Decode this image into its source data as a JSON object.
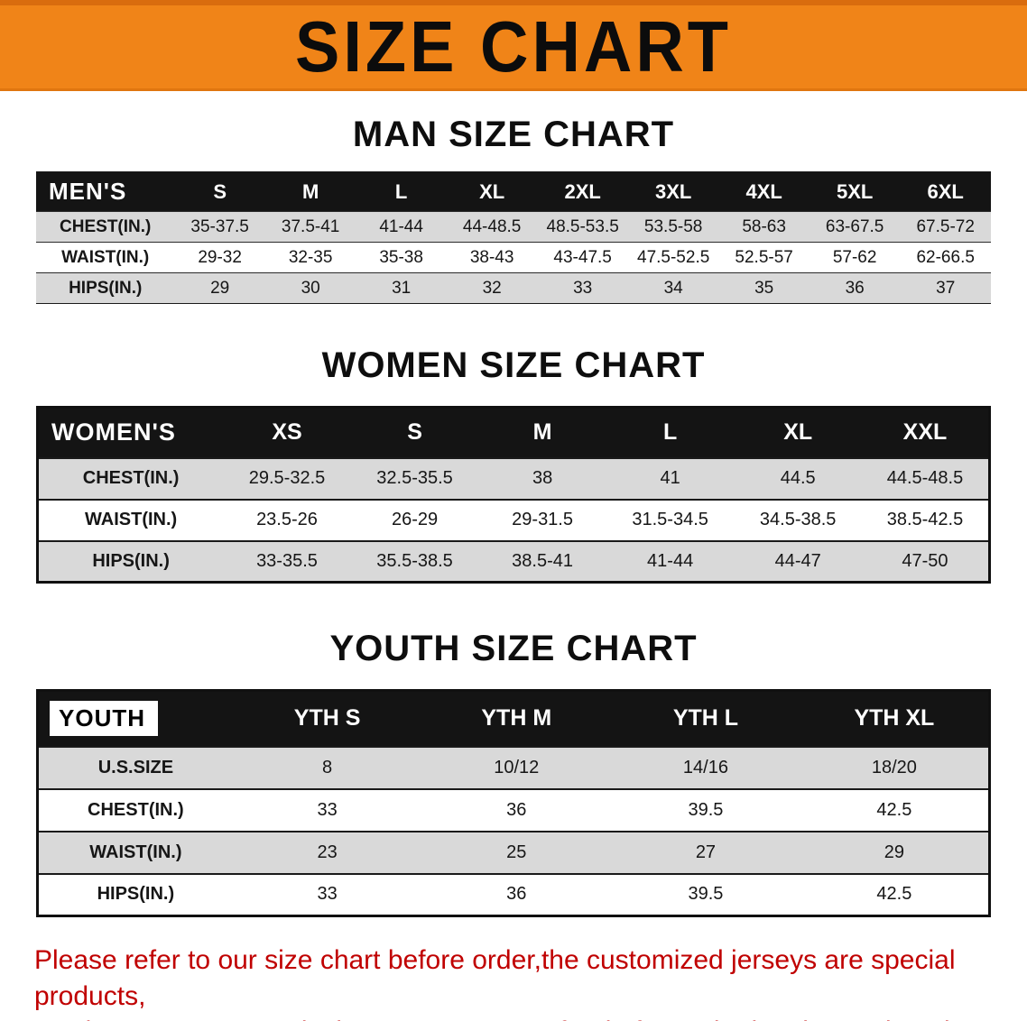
{
  "banner": {
    "title": "SIZE CHART"
  },
  "men": {
    "heading": "MAN SIZE CHART",
    "header": [
      "MEN'S",
      "S",
      "M",
      "L",
      "XL",
      "2XL",
      "3XL",
      "4XL",
      "5XL",
      "6XL"
    ],
    "rows": [
      [
        "CHEST(IN.)",
        "35-37.5",
        "37.5-41",
        "41-44",
        "44-48.5",
        "48.5-53.5",
        "53.5-58",
        "58-63",
        "63-67.5",
        "67.5-72"
      ],
      [
        "WAIST(IN.)",
        "29-32",
        "32-35",
        "35-38",
        "38-43",
        "43-47.5",
        "47.5-52.5",
        "52.5-57",
        "57-62",
        "62-66.5"
      ],
      [
        "HIPS(IN.)",
        "29",
        "30",
        "31",
        "32",
        "33",
        "34",
        "35",
        "36",
        "37"
      ]
    ]
  },
  "women": {
    "heading": "WOMEN SIZE CHART",
    "header": [
      "WOMEN'S",
      "XS",
      "S",
      "M",
      "L",
      "XL",
      "XXL"
    ],
    "rows": [
      [
        "CHEST(IN.)",
        "29.5-32.5",
        "32.5-35.5",
        "38",
        "41",
        "44.5",
        "44.5-48.5"
      ],
      [
        "WAIST(IN.)",
        "23.5-26",
        "26-29",
        "29-31.5",
        "31.5-34.5",
        "34.5-38.5",
        "38.5-42.5"
      ],
      [
        "HIPS(IN.)",
        "33-35.5",
        "35.5-38.5",
        "38.5-41",
        "41-44",
        "44-47",
        "47-50"
      ]
    ]
  },
  "youth": {
    "heading": "YOUTH SIZE CHART",
    "header": [
      "YOUTH",
      "YTH S",
      "YTH M",
      "YTH L",
      "YTH XL"
    ],
    "rows": [
      [
        "U.S.SIZE",
        "8",
        "10/12",
        "14/16",
        "18/20"
      ],
      [
        "CHEST(IN.)",
        "33",
        "36",
        "39.5",
        "42.5"
      ],
      [
        "WAIST(IN.)",
        "23",
        "25",
        "27",
        "29"
      ],
      [
        "HIPS(IN.)",
        "33",
        "36",
        "39.5",
        "42.5"
      ]
    ]
  },
  "footer": {
    "line1": "Please refer to our size chart before order,the customized jerseys are special products,",
    "line2": "we don't accept cancel, change, teturn or refund after order has been placed!"
  },
  "colors": {
    "banner_bg": "#f08418",
    "header_bg": "#141414",
    "row_alt_bg": "#d9d9d9",
    "footer_text": "#c00000"
  }
}
